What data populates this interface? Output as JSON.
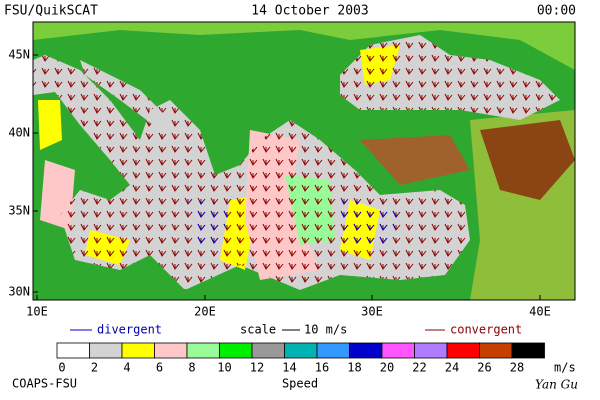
{
  "header": {
    "left": "FSU/QuikSCAT",
    "center": "14 October 2003",
    "right": "00:00"
  },
  "map": {
    "lat_labels": [
      "45N",
      "40N",
      "35N",
      "30N"
    ],
    "lon_labels": [
      "10E",
      "20E",
      "30E",
      "40E"
    ]
  },
  "legend": {
    "divergent": "divergent",
    "scale": "scale",
    "scale_value": "10 m/s",
    "convergent": "convergent"
  },
  "colorbar": {
    "ticks": [
      0,
      2,
      4,
      6,
      8,
      10,
      12,
      14,
      16,
      18,
      20,
      22,
      24,
      26,
      28
    ],
    "unit": "m/s",
    "title": "Speed",
    "colors": [
      "#ffffff",
      "#d3d3d3",
      "#ffff00",
      "#ffc8c8",
      "#98fb98",
      "#00ee00",
      "#999999",
      "#00b2b2",
      "#3399ff",
      "#0000cd",
      "#ff55ff",
      "#b07cff",
      "#ff0000",
      "#c84000",
      "#000000"
    ]
  },
  "footer": {
    "left": "COAPS-FSU",
    "right": "Yan Gu"
  }
}
